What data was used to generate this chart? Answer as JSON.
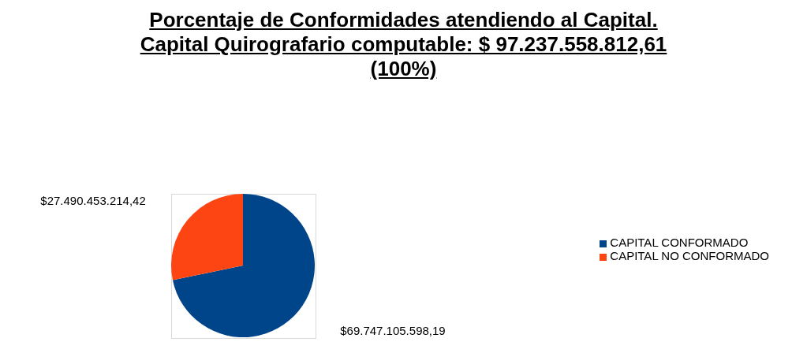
{
  "chart_data": {
    "type": "pie",
    "title": "Porcentaje de Conformidades atendiendo al Capital. Capital Quirografario computable: $ 97.237.558.812,61 (100%)",
    "categories": [
      "CAPITAL CONFORMADO",
      "CAPITAL NO CONFORMADO"
    ],
    "values": [
      69747105598.19,
      27490453214.42
    ],
    "colors": [
      "#00458a",
      "#fc4512"
    ],
    "value_labels": [
      "$69.747.105.598,19",
      "$27.490.453.214,42"
    ],
    "legend": "right"
  }
}
